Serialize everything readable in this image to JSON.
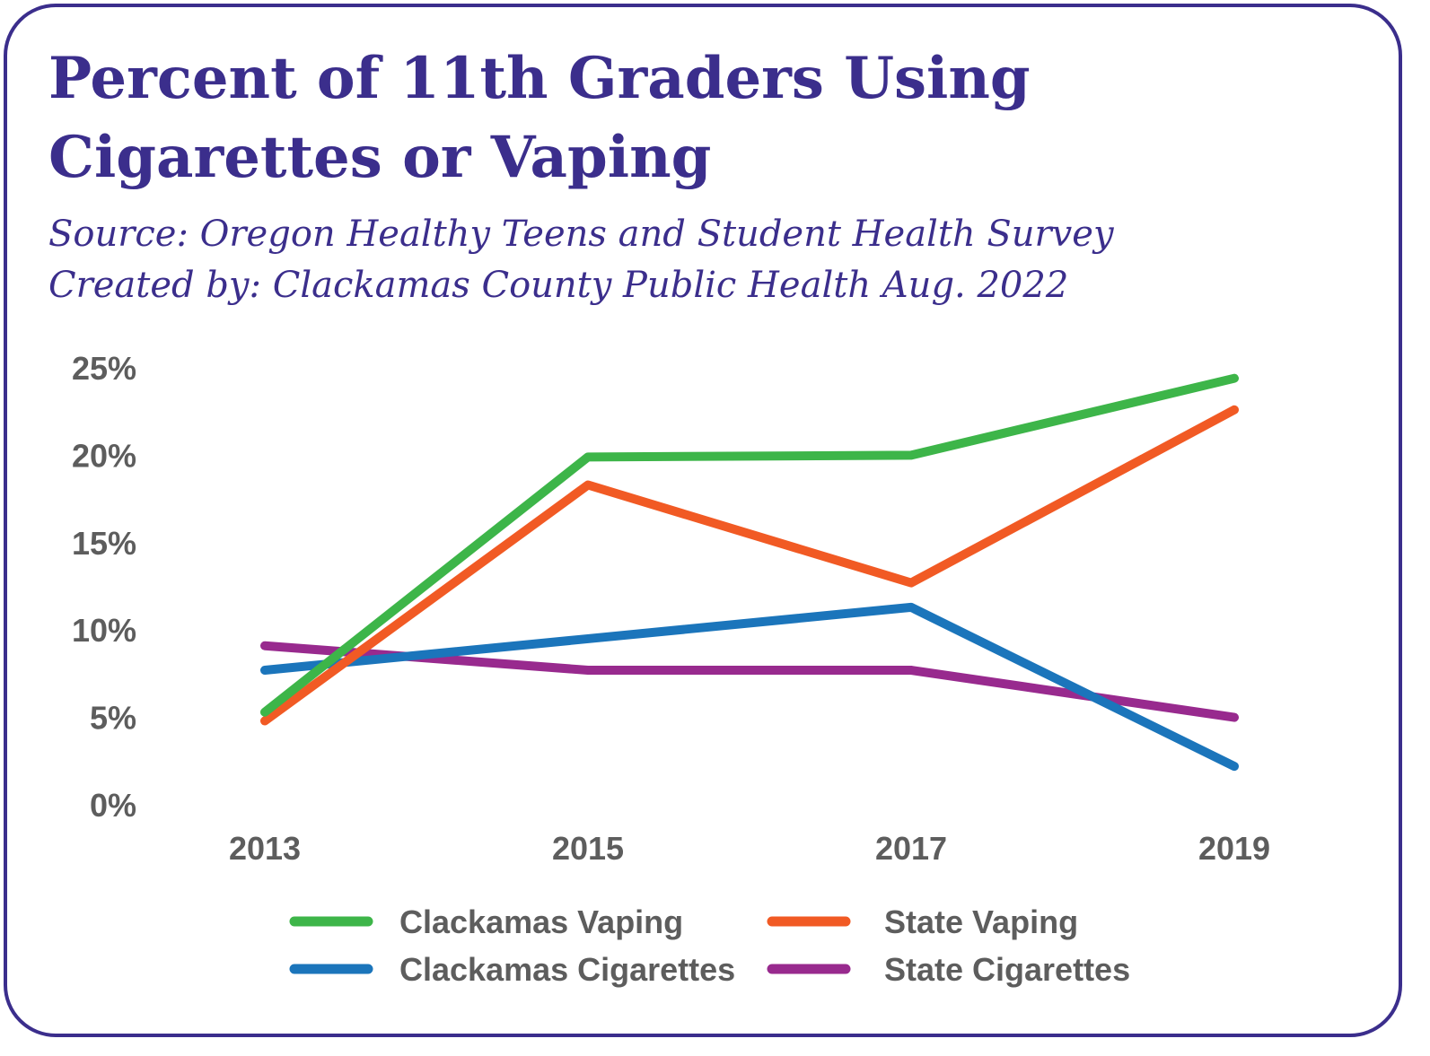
{
  "title": "Percent of 11th Graders Using Cigarettes or Vaping",
  "subtitle_source": "Source: Oregon Healthy Teens and Student Health Survey",
  "subtitle_created": "Created by: Clackamas County Public Health Aug. 2022",
  "chart_data": {
    "type": "line",
    "x": [
      "2013",
      "2015",
      "2017",
      "2019"
    ],
    "y_ticks": [
      "0%",
      "5%",
      "10%",
      "15%",
      "20%",
      "25%"
    ],
    "ylim": [
      0,
      25
    ],
    "grid": false,
    "legend_position": "bottom",
    "series": [
      {
        "name": "Clackamas Vaping",
        "color": "#3db549",
        "values": [
          5.3,
          19.9,
          20.0,
          24.4
        ]
      },
      {
        "name": "Clackamas Cigarettes",
        "color": "#1b75bb",
        "values": [
          7.7,
          9.5,
          11.3,
          2.2
        ]
      },
      {
        "name": "State Vaping",
        "color": "#f15a24",
        "values": [
          4.8,
          18.3,
          12.7,
          22.6
        ]
      },
      {
        "name": "State Cigarettes",
        "color": "#982a8e",
        "values": [
          9.1,
          7.7,
          7.7,
          5.0
        ]
      }
    ]
  }
}
